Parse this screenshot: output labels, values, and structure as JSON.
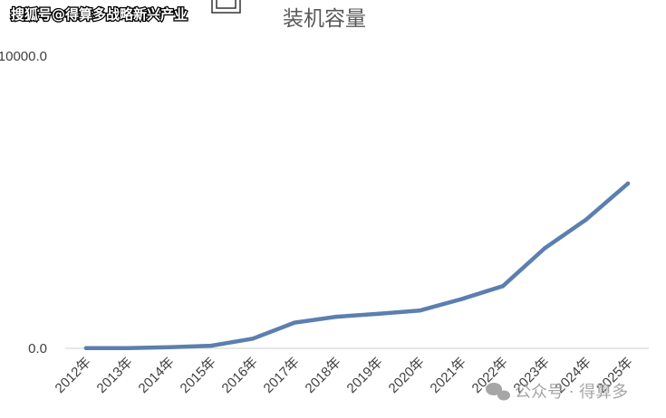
{
  "watermarks": {
    "top_left": "搜狐号@得算多战略新兴产业",
    "bottom_right": "公众号 · 得算多"
  },
  "colors": {
    "line": "#5b7fae",
    "axis": "#d9d9d9",
    "text": "#404040",
    "title": "#595959",
    "watermark_top": "#ffffff",
    "watermark_bottom": "#a6a6a6"
  },
  "chart_data": {
    "type": "line",
    "title": "装机容量",
    "xlabel": "",
    "ylabel": "",
    "grid": false,
    "legend": "none",
    "ylim": [
      0,
      10000
    ],
    "y_tick_labels": [
      "0.0",
      "10000.0"
    ],
    "categories": [
      "2012年",
      "2013年",
      "2014年",
      "2015年",
      "2016年",
      "2017年",
      "2018年",
      "2019年",
      "2020年",
      "2021年",
      "2022年",
      "2023年",
      "2024年",
      "2025年"
    ],
    "series": [
      {
        "values": [
          5,
          10,
          40,
          90,
          330,
          880,
          1080,
          1180,
          1290,
          1680,
          2130,
          3420,
          4410,
          5640
        ]
      }
    ]
  }
}
